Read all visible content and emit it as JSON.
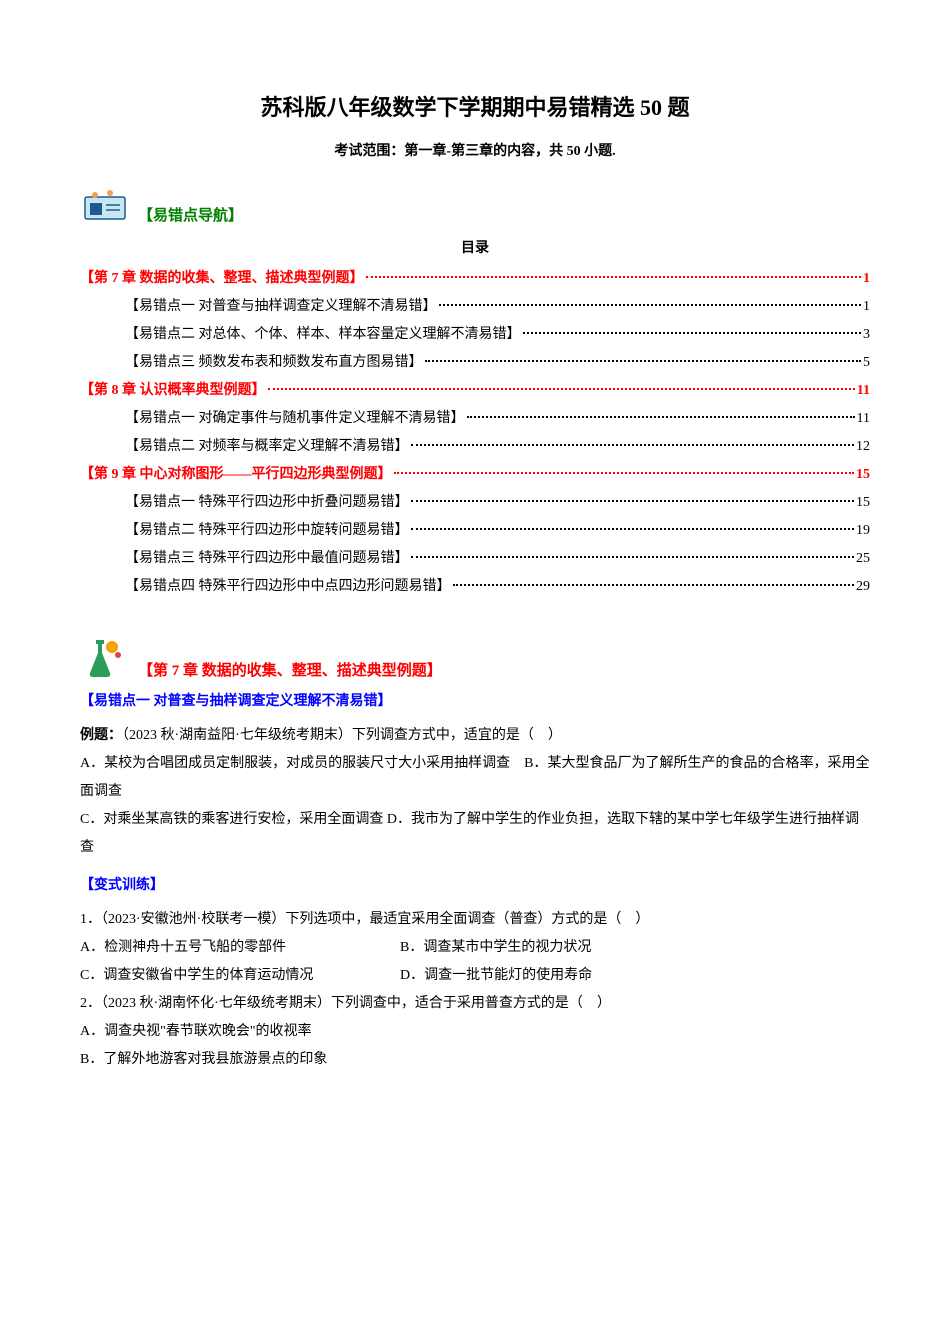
{
  "title": {
    "text": "苏科版八年级数学下学期期中易错精选 50 题",
    "fontsize": 22
  },
  "subtitle": {
    "text": "考试范围：第一章-第三章的内容，共 50 小题.",
    "fontsize": 14
  },
  "nav": {
    "label": "【易错点导航】",
    "fontsize": 15,
    "color": "#008000"
  },
  "toc": {
    "title": "目录",
    "title_fontsize": 14,
    "fontsize": 14,
    "chapter_color": "#ff0000",
    "item_color": "#000000",
    "entries": [
      {
        "type": "chapter",
        "text": "【第 7 章  数据的收集、整理、描述典型例题】",
        "page": "1"
      },
      {
        "type": "item",
        "text": "【易错点一  对普查与抽样调查定义理解不清易错】",
        "page": "1"
      },
      {
        "type": "item",
        "text": "【易错点二  对总体、个体、样本、样本容量定义理解不清易错】",
        "page": "3"
      },
      {
        "type": "item",
        "text": "【易错点三  频数发布表和频数发布直方图易错】",
        "page": "5"
      },
      {
        "type": "chapter",
        "text": "【第 8 章  认识概率典型例题】",
        "page": "11"
      },
      {
        "type": "item",
        "text": "【易错点一  对确定事件与随机事件定义理解不清易错】",
        "page": "11"
      },
      {
        "type": "item",
        "text": "【易错点二  对频率与概率定义理解不清易错】",
        "page": "12"
      },
      {
        "type": "chapter",
        "text": "【第 9 章  中心对称图形——平行四边形典型例题】",
        "page": "15"
      },
      {
        "type": "item",
        "text": "【易错点一  特殊平行四边形中折叠问题易错】",
        "page": "15"
      },
      {
        "type": "item",
        "text": "【易错点二  特殊平行四边形中旋转问题易错】",
        "page": "19"
      },
      {
        "type": "item",
        "text": "【易错点三  特殊平行四边形中最值问题易错】",
        "page": "25"
      },
      {
        "type": "item",
        "text": "【易错点四  特殊平行四边形中中点四边形问题易错】",
        "page": "29"
      }
    ]
  },
  "section1": {
    "label": "【第 7 章  数据的收集、整理、描述典型例题】",
    "fontsize": 15,
    "color": "#ff0000"
  },
  "sub1": {
    "label": "【易错点一  对普查与抽样调查定义理解不清易错】",
    "fontsize": 14,
    "color": "#0000ff"
  },
  "example": {
    "prefix": "例题：",
    "source": "（2023 秋·湖南益阳·七年级统考期末）下列调查方式中，适宜的是（　）",
    "optA_prefix": "A．",
    "optA": "某校为合唱团成员定制服装，对成员的服装尺寸大小采用抽样调查",
    "optB_prefix": "B．",
    "optB": "某大型食品厂为了解所生产的食品的合格率，采用全面调查",
    "optC_prefix": "C．",
    "optC": "对乘坐某高铁的乘客进行安检，采用全面调查",
    "optD_prefix": "D．",
    "optD": "我市为了解中学生的作业负担，选取下辖的某中学七年级学生进行抽样调查",
    "fontsize": 14
  },
  "variant": {
    "label": "【变式训练】",
    "fontsize": 14,
    "color": "#0000ff"
  },
  "q1": {
    "num": "1．",
    "source": "（2023·安徽池州·校联考一模）下列选项中，最适宜采用全面调查（普查）方式的是（　）",
    "optA": "A．检测神舟十五号飞船的零部件",
    "optB": "B．调查某市中学生的视力状况",
    "optC": "C．调查安徽省中学生的体育运动情况",
    "optD": "D．调查一批节能灯的使用寿命",
    "fontsize": 14
  },
  "q2": {
    "num": "2．",
    "source": "（2023 秋·湖南怀化·七年级统考期末）下列调查中，适合于采用普查方式的是（　）",
    "optA": "A．调查央视\"春节联欢晚会\"的收视率",
    "optB": "B．了解外地游客对我县旅游景点的印象",
    "fontsize": 14
  },
  "icons": {
    "nav_bg": "#c8e6f0",
    "nav_accent": "#1e5a8e",
    "section_bg": "#2a9d5c",
    "section_accent": "#f4a300"
  }
}
